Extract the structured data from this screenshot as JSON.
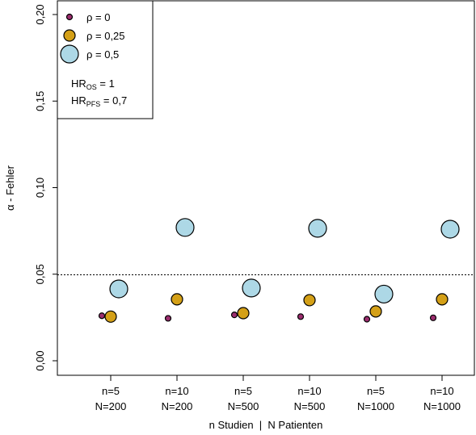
{
  "chart_data": {
    "type": "scatter",
    "ylabel": "α - Fehler",
    "xlabel": "n Studien  |  N Patienten",
    "ylim": [
      0,
      0.2
    ],
    "yticks": [
      "0,00",
      "0,05",
      "0,10",
      "0,15",
      "0,20"
    ],
    "ytick_values": [
      0,
      0.05,
      0.1,
      0.15,
      0.2
    ],
    "reference_line": 0.05,
    "grid": false,
    "legend_position": "top-left",
    "categories": [
      {
        "line1": "n=5",
        "line2": "N=200"
      },
      {
        "line1": "n=10",
        "line2": "N=200"
      },
      {
        "line1": "n=5",
        "line2": "N=500"
      },
      {
        "line1": "n=10",
        "line2": "N=500"
      },
      {
        "line1": "n=5",
        "line2": "N=1000"
      },
      {
        "line1": "n=10",
        "line2": "N=1000"
      }
    ],
    "series": [
      {
        "name": "ρ = 0",
        "color": "#9B2D6E",
        "size": "small",
        "values": [
          0.026,
          0.0245,
          0.0265,
          0.0255,
          0.024,
          0.0248
        ]
      },
      {
        "name": "ρ = 0,25",
        "color": "#D4A017",
        "size": "medium",
        "values": [
          0.0255,
          0.0355,
          0.0275,
          0.035,
          0.0285,
          0.0355
        ]
      },
      {
        "name": "ρ = 0,5",
        "color": "#ADD8E6",
        "size": "large",
        "values": [
          0.0415,
          0.077,
          0.042,
          0.0765,
          0.0385,
          0.076
        ]
      }
    ],
    "legend_notes": [
      {
        "main": "HR",
        "sub": "OS",
        "value": " = 1"
      },
      {
        "main": "HR",
        "sub": "PFS",
        "value": " = 0,7"
      }
    ]
  }
}
